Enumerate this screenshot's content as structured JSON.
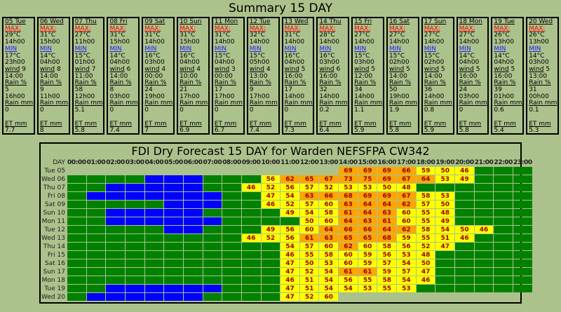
{
  "page": {
    "background": "#ACC28C"
  },
  "summary": {
    "title": "Summary 15 DAY",
    "labels": {
      "max": "MAX:",
      "min": "MIN",
      "wind": "wind",
      "rain_pct": "Rain %",
      "rain_mm": "Rain mm",
      "et_mm": "ET mm"
    },
    "days": [
      {
        "day": "05 Tue",
        "max_temp": "29°C",
        "max_time": "14h00",
        "min_temp": "17°C",
        "min_time": "23h00",
        "wind": "9",
        "wind_time": "14:00",
        "rain_pct": "5",
        "rain_pct_time": "16h00",
        "rain_mm": "0",
        "et": "7.7"
      },
      {
        "day": "06 Wed",
        "max_temp": "31°C",
        "max_time": "15h00",
        "min_temp": "14°C",
        "min_time": "04h00",
        "wind": "8",
        "wind_time": "14:00",
        "rain_pct": "9",
        "rain_pct_time": "11h00",
        "rain_mm": "0",
        "et": "8"
      },
      {
        "day": "07 Thu",
        "max_temp": "27°C",
        "max_time": "11h00",
        "min_temp": "15°C",
        "min_time": "01h00",
        "wind": "7",
        "wind_time": "11:00",
        "rain_pct": "58",
        "rain_pct_time": "12h00",
        "rain_mm": "5.1",
        "et": "5.8"
      },
      {
        "day": "08 Fri",
        "max_temp": "31°C",
        "max_time": "15h00",
        "min_temp": "14°C",
        "min_time": "04h00",
        "wind": "6",
        "wind_time": "14:00",
        "rain_pct": "8",
        "rain_pct_time": "03h00",
        "rain_mm": "0",
        "et": "7.4"
      },
      {
        "day": "09 Sat",
        "max_temp": "31°C",
        "max_time": "14h00",
        "min_temp": "16°C",
        "min_time": "03h00",
        "wind": "4",
        "wind_time": "00:00",
        "rain_pct": "24",
        "rain_pct_time": "19h00",
        "rain_mm": "0",
        "et": "7"
      },
      {
        "day": "10 Sun",
        "max_temp": "31°C",
        "max_time": "15h00",
        "min_temp": "16°C",
        "min_time": "04h00",
        "wind": "4",
        "wind_time": "10:00",
        "rain_pct": "21",
        "rain_pct_time": "17h00",
        "rain_mm": "0",
        "et": "6.9"
      },
      {
        "day": "11 Mon",
        "max_temp": "31°C",
        "max_time": "14h00",
        "min_temp": "15°C",
        "min_time": "04h00",
        "wind": "3",
        "wind_time": "00:00",
        "rain_pct": "17",
        "rain_pct_time": "17h00",
        "rain_mm": "0",
        "et": "6.7"
      },
      {
        "day": "12 Tue",
        "max_temp": "32°C",
        "max_time": "14h00",
        "min_temp": "15°C",
        "min_time": "05h00",
        "wind": "4",
        "wind_time": "13:00",
        "rain_pct": "9",
        "rain_pct_time": "17h00",
        "rain_mm": "0",
        "et": "7.4"
      },
      {
        "day": "13 Wed",
        "max_temp": "31°C",
        "max_time": "14h00",
        "min_temp": "16°C",
        "min_time": "04h00",
        "wind": "5",
        "wind_time": "16:00",
        "rain_pct": "17",
        "rain_pct_time": "14h00",
        "rain_mm": "0",
        "et": "7.3"
      },
      {
        "day": "14 Thu",
        "max_temp": "28°C",
        "max_time": "14h00",
        "min_temp": "16°C",
        "min_time": "03h00",
        "wind": "6",
        "wind_time": "16:00",
        "rain_pct": "32",
        "rain_pct_time": "14h00",
        "rain_mm": "0.2",
        "et": "6.4"
      },
      {
        "day": "15 Fri",
        "max_temp": "27°C",
        "max_time": "14h00",
        "min_temp": "15°C",
        "min_time": "03h00",
        "wind": "5",
        "wind_time": "12:00",
        "rain_pct": "34",
        "rain_pct_time": "14h00",
        "rain_mm": "1.1",
        "et": "5.9"
      },
      {
        "day": "16 Sat",
        "max_temp": "27°C",
        "max_time": "14h00",
        "min_temp": "15°C",
        "min_time": "02h00",
        "wind": "5",
        "wind_time": "14:00",
        "rain_pct": "50",
        "rain_pct_time": "19h00",
        "rain_mm": "1.9",
        "et": "5.8"
      },
      {
        "day": "17 Sun",
        "max_temp": "27°C",
        "max_time": "14h00",
        "min_temp": "15°C",
        "min_time": "02h00",
        "wind": "5",
        "wind_time": "14:00",
        "rain_pct": "36",
        "rain_pct_time": "14h00",
        "rain_mm": "0.8",
        "et": "5.9"
      },
      {
        "day": "18 Mon",
        "max_temp": "27°C",
        "max_time": "14h00",
        "min_temp": "14°C",
        "min_time": "04h00",
        "wind": "5",
        "wind_time": "16:00",
        "rain_pct": "24",
        "rain_pct_time": "03h00",
        "rain_mm": "0",
        "et": "5.8"
      },
      {
        "day": "19 Tue",
        "max_temp": "26°C",
        "max_time": "13h00",
        "min_temp": "14°C",
        "min_time": "04h00",
        "wind": "5",
        "wind_time": "16:00",
        "rain_pct": "39",
        "rain_pct_time": "01h00",
        "rain_mm": "0.6",
        "et": "5.4"
      },
      {
        "day": "20 Wed",
        "max_temp": "26°C",
        "max_time": "13h00",
        "min_temp": "14°C",
        "min_time": "03h00",
        "wind": "5",
        "wind_time": "13:00",
        "rain_pct": "31",
        "rain_pct_time": "00h00",
        "rain_mm": "0.1",
        "et": "5.3"
      }
    ]
  },
  "fdi": {
    "title": "FDI Dry Forecast 15 DAY for Warden NEFSFPA CW342",
    "day_header": "DAY",
    "hours": [
      "00:00",
      "01:00",
      "02:00",
      "03:00",
      "04:00",
      "05:00",
      "06:00",
      "07:00",
      "08:00",
      "09:00",
      "10:00",
      "11:00",
      "12:00",
      "13:00",
      "14:00",
      "15:00",
      "16:00",
      "17:00",
      "18:00",
      "19:00",
      "20:00",
      "21:00",
      "22:00",
      "23:00"
    ],
    "legend": {
      "g": "low-fdi-green",
      "b": "wet-blue",
      "yellow": "moderate-fdi",
      "orange": "high-fdi"
    },
    "colors": {
      "green": "#008200",
      "blue": "#0000FF",
      "yellow": "#FFFF00",
      "orange": "#FFA500",
      "value_text": "#990000"
    },
    "orange_threshold": 61,
    "rows": [
      {
        "label": "Tue 05",
        "cells": [
          null,
          null,
          null,
          null,
          null,
          null,
          null,
          null,
          null,
          null,
          null,
          null,
          null,
          null,
          69,
          69,
          69,
          66,
          59,
          50,
          46,
          "g",
          "g",
          "g"
        ]
      },
      {
        "label": "Wed 06",
        "cells": [
          "g",
          "g",
          "g",
          "g",
          "b",
          "b",
          "b",
          "g",
          "g",
          "g",
          56,
          62,
          65,
          67,
          73,
          75,
          69,
          67,
          64,
          53,
          49,
          "g",
          "g",
          "g"
        ]
      },
      {
        "label": "Thu 07",
        "cells": [
          "g",
          "g",
          "b",
          "b",
          "b",
          "b",
          "b",
          "g",
          "g",
          46,
          52,
          56,
          57,
          52,
          53,
          53,
          50,
          48,
          "g",
          "g",
          "g",
          "g",
          "g",
          "g"
        ]
      },
      {
        "label": "Fri 08",
        "cells": [
          "g",
          "b",
          "b",
          "b",
          "b",
          "b",
          "b",
          "b",
          "g",
          "g",
          47,
          54,
          63,
          66,
          68,
          69,
          69,
          67,
          58,
          53,
          "g",
          "g",
          "g",
          "g"
        ]
      },
      {
        "label": "Sat 09",
        "cells": [
          "g",
          "g",
          "g",
          "g",
          "g",
          "b",
          "b",
          "b",
          "g",
          "g",
          46,
          52,
          57,
          60,
          63,
          64,
          64,
          62,
          57,
          50,
          "g",
          "g",
          "g",
          "g"
        ]
      },
      {
        "label": "Sun 10",
        "cells": [
          "g",
          "g",
          "b",
          "b",
          "b",
          "b",
          "b",
          "g",
          "g",
          "g",
          "g",
          49,
          54,
          58,
          61,
          64,
          63,
          60,
          55,
          48,
          "g",
          "g",
          "g",
          "g"
        ]
      },
      {
        "label": "Mon 11",
        "cells": [
          "g",
          "g",
          "b",
          "b",
          "b",
          "b",
          "b",
          "b",
          "g",
          "g",
          "g",
          "g",
          50,
          60,
          64,
          63,
          61,
          60,
          55,
          49,
          "g",
          "g",
          "g",
          "g"
        ]
      },
      {
        "label": "Tue 12",
        "cells": [
          "g",
          "g",
          "g",
          "g",
          "g",
          "b",
          "b",
          "g",
          "g",
          "g",
          49,
          56,
          60,
          64,
          66,
          66,
          64,
          62,
          58,
          54,
          50,
          46,
          "g",
          "g"
        ]
      },
      {
        "label": "Wed 13",
        "cells": [
          "g",
          "g",
          "g",
          "g",
          "g",
          "g",
          "g",
          "g",
          "g",
          46,
          52,
          56,
          61,
          63,
          65,
          65,
          68,
          59,
          55,
          51,
          46,
          "g",
          "g",
          "g"
        ]
      },
      {
        "label": "Thu 14",
        "cells": [
          "g",
          "g",
          "g",
          "g",
          "g",
          "g",
          "g",
          "g",
          "g",
          "g",
          "g",
          54,
          57,
          60,
          62,
          60,
          58,
          56,
          52,
          47,
          "g",
          "g",
          "g",
          "g"
        ]
      },
      {
        "label": "Fri 15",
        "cells": [
          "g",
          "g",
          "g",
          "g",
          "g",
          "g",
          "g",
          "g",
          "g",
          "g",
          "g",
          46,
          55,
          58,
          60,
          59,
          56,
          53,
          48,
          "g",
          "g",
          "g",
          "g",
          "g"
        ]
      },
      {
        "label": "Sat 16",
        "cells": [
          "g",
          "g",
          "g",
          "g",
          "g",
          "g",
          "g",
          "g",
          "g",
          "g",
          "g",
          47,
          50,
          53,
          60,
          59,
          57,
          54,
          50,
          "g",
          "g",
          "g",
          "g",
          "g"
        ]
      },
      {
        "label": "Sun 17",
        "cells": [
          "g",
          "g",
          "g",
          "g",
          "g",
          "g",
          "g",
          "g",
          "g",
          "g",
          "g",
          47,
          52,
          54,
          61,
          61,
          59,
          57,
          47,
          "g",
          "g",
          "g",
          "g",
          "g"
        ]
      },
      {
        "label": "Mon 18",
        "cells": [
          "g",
          "g",
          "g",
          "g",
          "g",
          "g",
          "g",
          "g",
          "g",
          "g",
          "g",
          46,
          51,
          54,
          56,
          55,
          58,
          54,
          46,
          "g",
          "g",
          "g",
          "g",
          "g"
        ]
      },
      {
        "label": "Tue 19",
        "cells": [
          "g",
          "g",
          "b",
          "b",
          "b",
          "b",
          "b",
          "b",
          "g",
          "g",
          "g",
          47,
          51,
          54,
          54,
          53,
          55,
          53,
          "g",
          "g",
          "g",
          "g",
          "g",
          "g"
        ]
      },
      {
        "label": "Wed 20",
        "cells": [
          "g",
          "b",
          "b",
          "b",
          "b",
          "b",
          "b",
          "g",
          "g",
          "g",
          "g",
          47,
          52,
          60,
          null,
          null,
          null,
          null,
          null,
          null,
          null,
          null,
          null,
          null
        ]
      }
    ]
  }
}
